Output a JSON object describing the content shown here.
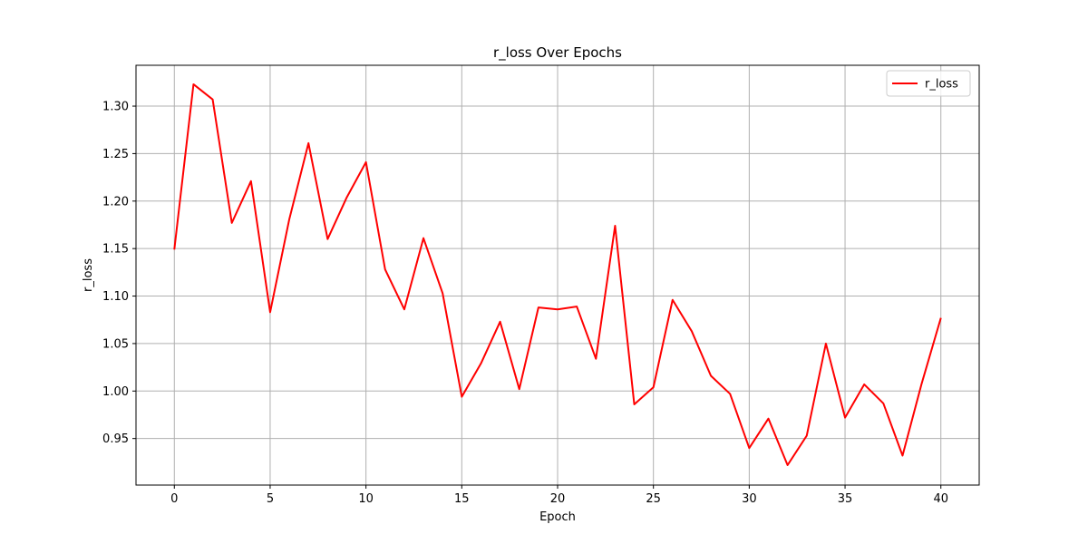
{
  "chart_data": {
    "type": "line",
    "title": "r_loss Over Epochs",
    "xlabel": "Epoch",
    "ylabel": "r_loss",
    "xlim": [
      -2,
      42
    ],
    "ylim": [
      0.901,
      1.343
    ],
    "xticks": [
      0,
      5,
      10,
      15,
      20,
      25,
      30,
      35,
      40
    ],
    "yticks": [
      0.95,
      1.0,
      1.05,
      1.1,
      1.15,
      1.2,
      1.25,
      1.3
    ],
    "grid": true,
    "legend_position": "top-right",
    "series": [
      {
        "name": "r_loss",
        "color": "#ff0000",
        "x": [
          0,
          1,
          2,
          3,
          4,
          5,
          6,
          7,
          8,
          9,
          10,
          11,
          12,
          13,
          14,
          15,
          16,
          17,
          18,
          19,
          20,
          21,
          22,
          23,
          24,
          25,
          26,
          27,
          28,
          29,
          30,
          31,
          32,
          33,
          34,
          35,
          36,
          37,
          38,
          39,
          40
        ],
        "values": [
          1.149,
          1.323,
          1.307,
          1.177,
          1.221,
          1.083,
          1.181,
          1.261,
          1.16,
          1.204,
          1.241,
          1.128,
          1.086,
          1.161,
          1.103,
          0.994,
          1.029,
          1.073,
          1.002,
          1.088,
          1.086,
          1.089,
          1.034,
          1.174,
          0.986,
          1.004,
          1.096,
          1.063,
          1.016,
          0.997,
          0.94,
          0.971,
          0.922,
          0.953,
          1.05,
          0.972,
          1.007,
          0.987,
          0.932,
          1.008,
          1.077
        ]
      }
    ]
  }
}
